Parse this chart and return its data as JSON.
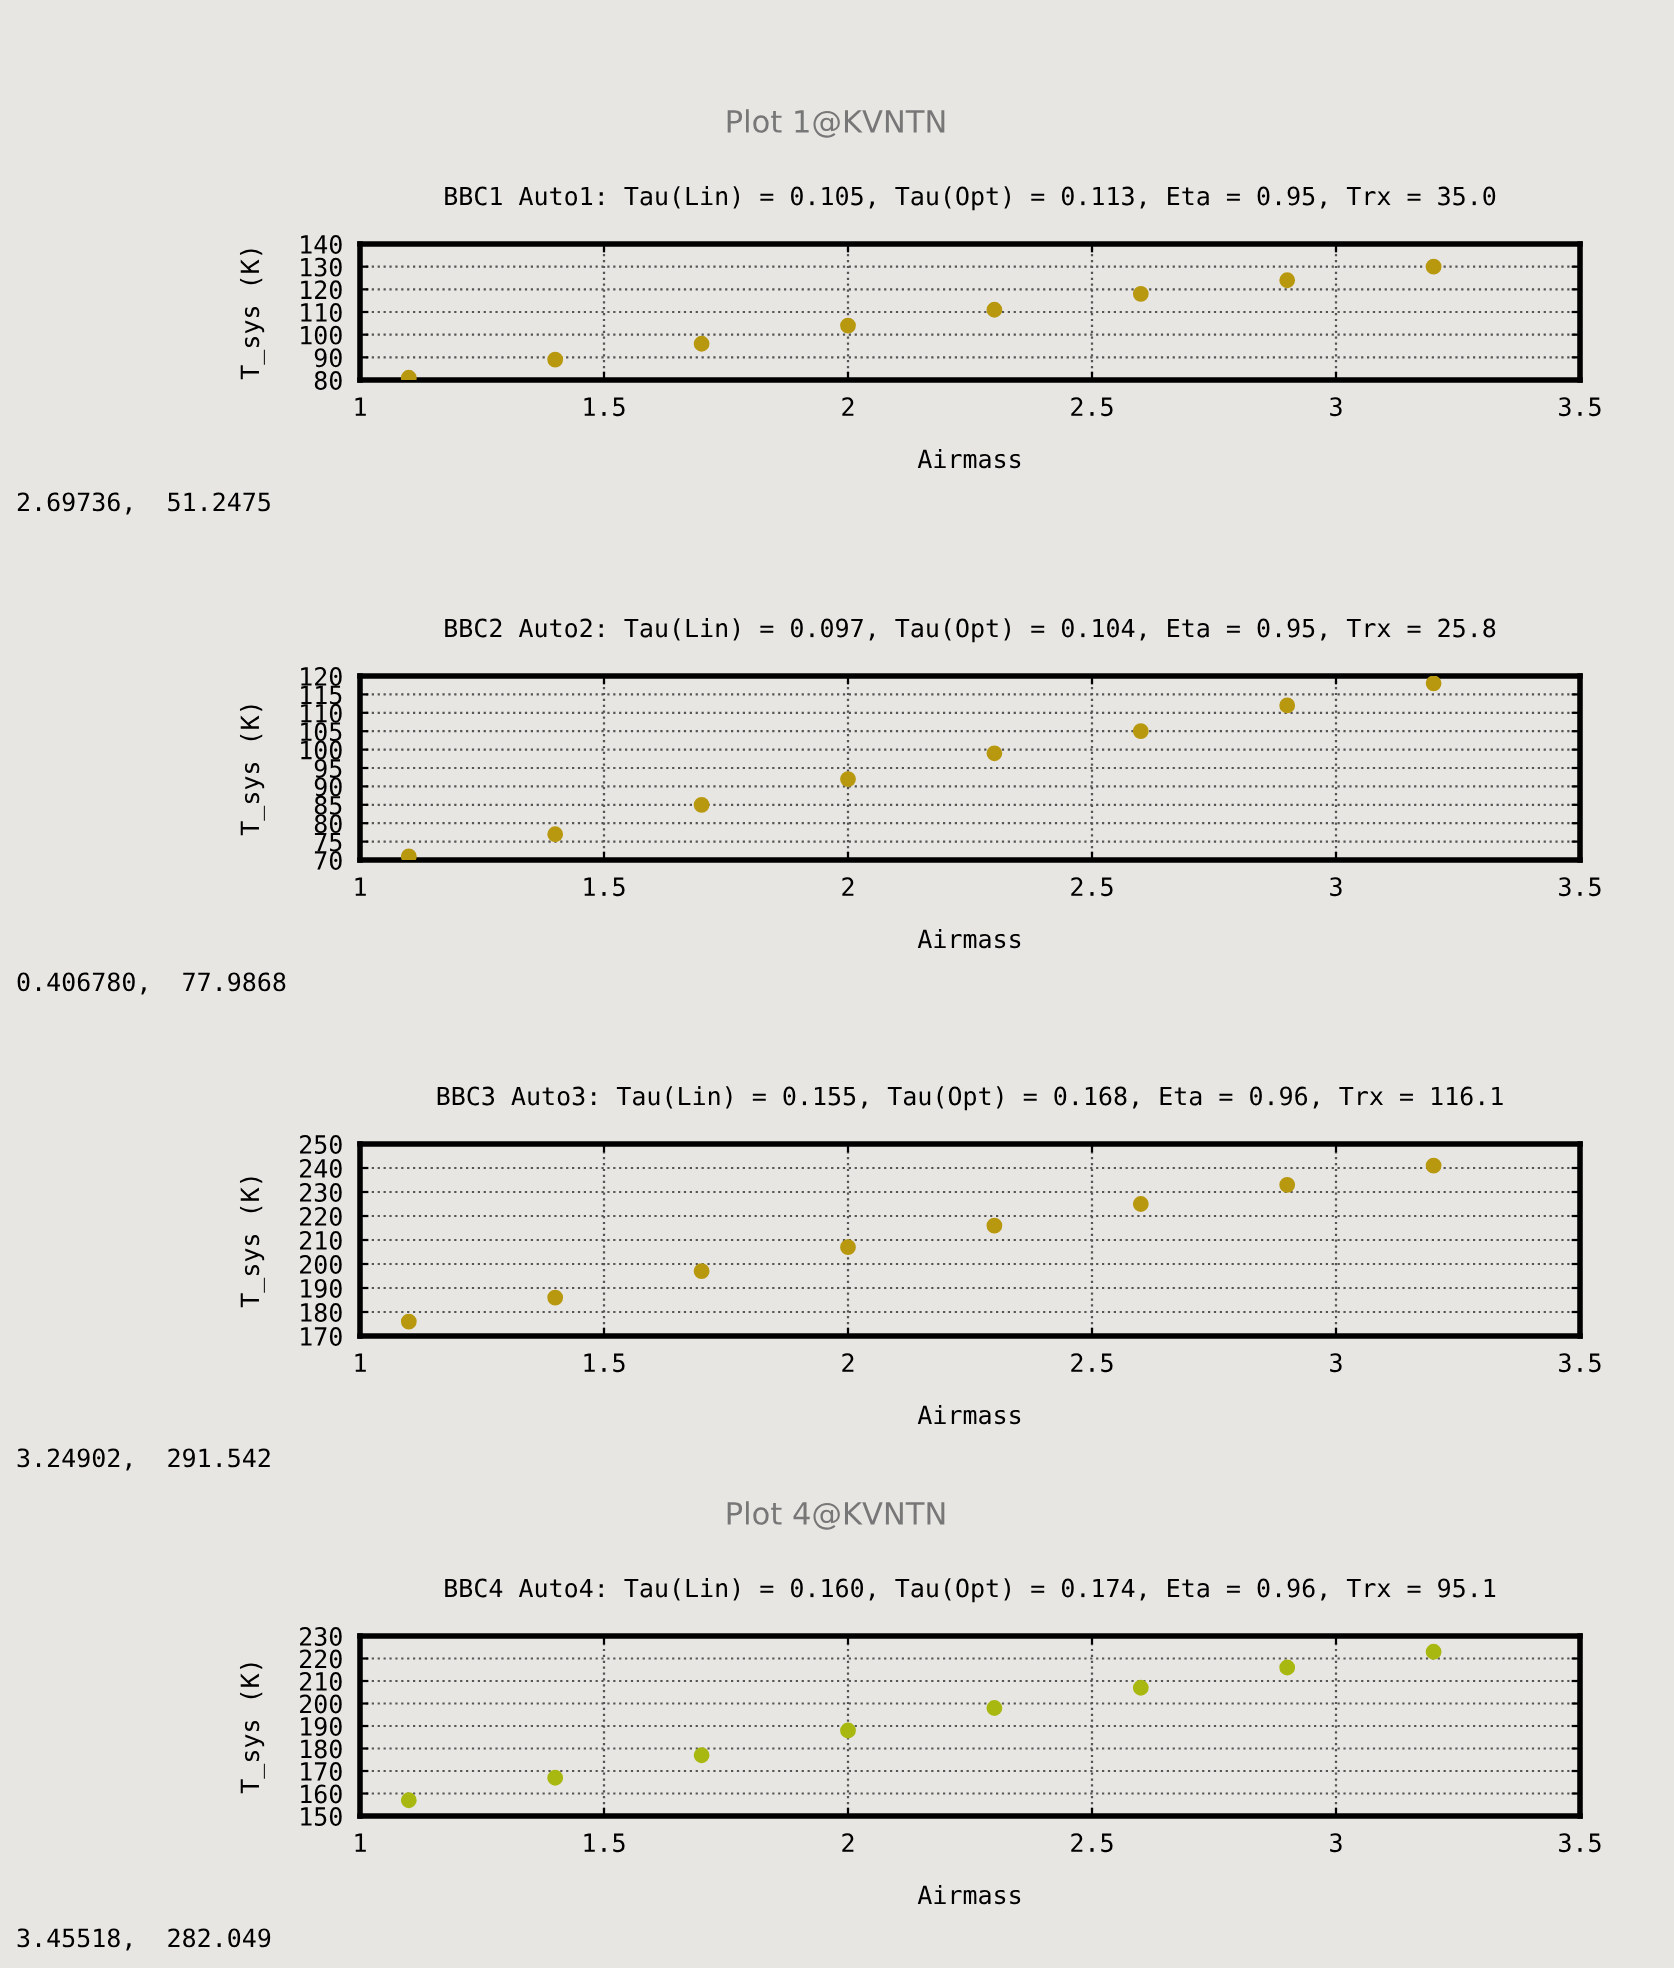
{
  "chart_data": [
    {
      "type": "scatter",
      "title": "BBC1 Auto1: Tau(Lin) = 0.105, Tau(Opt) = 0.113, Eta = 0.95, Trx = 35.0",
      "xlabel": "Airmass",
      "ylabel": "T_sys (K)",
      "annotations": [
        "Plot 1@KVNTN",
        "2.69736,  51.2475"
      ],
      "x": [
        1.1,
        1.4,
        1.7,
        2.0,
        2.3,
        2.6,
        2.9,
        3.2
      ],
      "values": [
        81,
        89,
        96,
        104,
        111,
        118,
        124,
        130
      ],
      "color": "#b8980e",
      "marker": "circle",
      "xlim": [
        1,
        3.5
      ],
      "xticks": [
        1,
        1.5,
        2,
        2.5,
        3,
        3.5
      ],
      "ylim": [
        80,
        140
      ],
      "yticks": [
        80,
        90,
        100,
        110,
        120,
        130,
        140
      ],
      "grid": true
    },
    {
      "type": "scatter",
      "title": "BBC2 Auto2: Tau(Lin) = 0.097, Tau(Opt) = 0.104, Eta = 0.95, Trx = 25.8",
      "xlabel": "Airmass",
      "ylabel": "T_sys (K)",
      "annotations": [
        "0.406780,  77.9868"
      ],
      "x": [
        1.1,
        1.4,
        1.7,
        2.0,
        2.3,
        2.6,
        2.9,
        3.2
      ],
      "values": [
        71,
        77,
        85,
        92,
        99,
        105,
        112,
        118
      ],
      "color": "#b8980e",
      "marker": "circle",
      "xlim": [
        1,
        3.5
      ],
      "xticks": [
        1,
        1.5,
        2,
        2.5,
        3,
        3.5
      ],
      "ylim": [
        70,
        120
      ],
      "yticks": [
        70,
        75,
        80,
        85,
        90,
        95,
        100,
        105,
        110,
        115,
        120
      ],
      "grid": true
    },
    {
      "type": "scatter",
      "title": "BBC3 Auto3: Tau(Lin) = 0.155, Tau(Opt) = 0.168, Eta = 0.96, Trx = 116.1",
      "xlabel": "Airmass",
      "ylabel": "T_sys (K)",
      "annotations": [
        "3.24902,  291.542"
      ],
      "x": [
        1.1,
        1.4,
        1.7,
        2.0,
        2.3,
        2.6,
        2.9,
        3.2
      ],
      "values": [
        176,
        186,
        197,
        207,
        216,
        225,
        233,
        241
      ],
      "color": "#b8980e",
      "marker": "circle",
      "xlim": [
        1,
        3.5
      ],
      "xticks": [
        1,
        1.5,
        2,
        2.5,
        3,
        3.5
      ],
      "ylim": [
        170,
        250
      ],
      "yticks": [
        170,
        180,
        190,
        200,
        210,
        220,
        230,
        240,
        250
      ],
      "grid": true
    },
    {
      "type": "scatter",
      "title": "BBC4 Auto4: Tau(Lin) = 0.160, Tau(Opt) = 0.174, Eta = 0.96, Trx = 95.1",
      "xlabel": "Airmass",
      "ylabel": "T_sys (K)",
      "annotations": [
        "Plot 4@KVNTN",
        "3.45518,  282.049"
      ],
      "x": [
        1.1,
        1.4,
        1.7,
        2.0,
        2.3,
        2.6,
        2.9,
        3.2
      ],
      "values": [
        157,
        167,
        177,
        188,
        198,
        207,
        216,
        223
      ],
      "color": "#a8b810",
      "marker": "circle",
      "xlim": [
        1,
        3.5
      ],
      "xticks": [
        1,
        1.5,
        2,
        2.5,
        3,
        3.5
      ],
      "ylim": [
        150,
        230
      ],
      "yticks": [
        150,
        160,
        170,
        180,
        190,
        200,
        210,
        220,
        230
      ],
      "grid": true
    }
  ]
}
